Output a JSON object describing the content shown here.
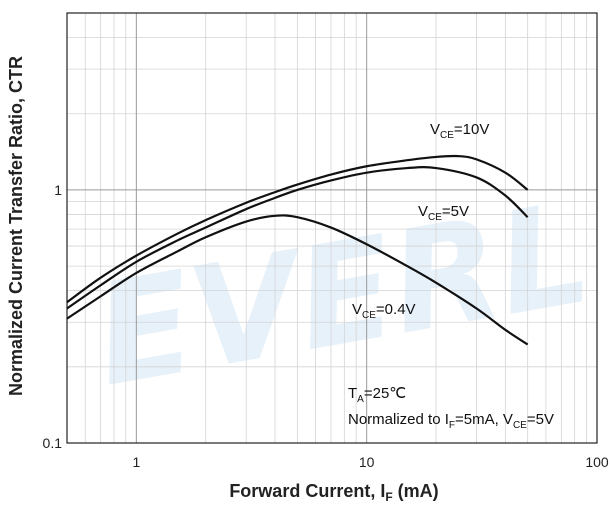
{
  "chart_data": {
    "type": "line",
    "xlabel": "Forward Current, I",
    "xlabel_sub": "F",
    "xlabel_suffix": " (mA)",
    "ylabel": "Normalized Current Transfer Ratio, CTR",
    "xscale": "log",
    "yscale": "log",
    "xlim": [
      0.5,
      100
    ],
    "ylim": [
      0.1,
      5
    ],
    "grid": true,
    "x_ticks": [
      {
        "value": 1,
        "label": "1"
      },
      {
        "value": 10,
        "label": "10"
      },
      {
        "value": 100,
        "label": "100"
      }
    ],
    "y_ticks": [
      {
        "value": 0.1,
        "label": "0.1"
      },
      {
        "value": 1,
        "label": "1"
      }
    ],
    "series": [
      {
        "label": {
          "main": "V",
          "sub": "CE",
          "tail": "=10V"
        },
        "x": [
          0.5,
          0.7,
          1,
          1.5,
          2,
          3,
          4,
          5,
          7,
          10,
          15,
          20,
          25,
          30,
          40,
          50
        ],
        "y": [
          0.36,
          0.45,
          0.55,
          0.67,
          0.76,
          0.89,
          0.98,
          1.05,
          1.15,
          1.24,
          1.31,
          1.35,
          1.36,
          1.32,
          1.17,
          1.0
        ]
      },
      {
        "label": {
          "main": "V",
          "sub": "CE",
          "tail": "=5V"
        },
        "x": [
          0.5,
          0.7,
          1,
          1.5,
          2,
          3,
          4,
          5,
          7,
          10,
          15,
          20,
          30,
          40,
          50
        ],
        "y": [
          0.34,
          0.42,
          0.52,
          0.63,
          0.71,
          0.84,
          0.93,
          1.0,
          1.09,
          1.17,
          1.22,
          1.22,
          1.12,
          0.95,
          0.78
        ]
      },
      {
        "label": {
          "main": "V",
          "sub": "CE",
          "tail": "=0.4V"
        },
        "x": [
          0.5,
          0.7,
          1,
          1.5,
          2,
          3,
          4,
          5,
          7,
          10,
          15,
          20,
          30,
          40,
          50
        ],
        "y": [
          0.31,
          0.38,
          0.47,
          0.57,
          0.65,
          0.75,
          0.79,
          0.78,
          0.71,
          0.61,
          0.5,
          0.43,
          0.34,
          0.28,
          0.245
        ]
      }
    ],
    "note_line1": {
      "main": "T",
      "sub": "A",
      "tail": "=25℃"
    },
    "note_line2": {
      "a": "Normalized to I",
      "a_sub": "F",
      "b": "=5mA, V",
      "b_sub": "CE",
      "c": "=5V"
    },
    "watermark": "EVERL"
  }
}
